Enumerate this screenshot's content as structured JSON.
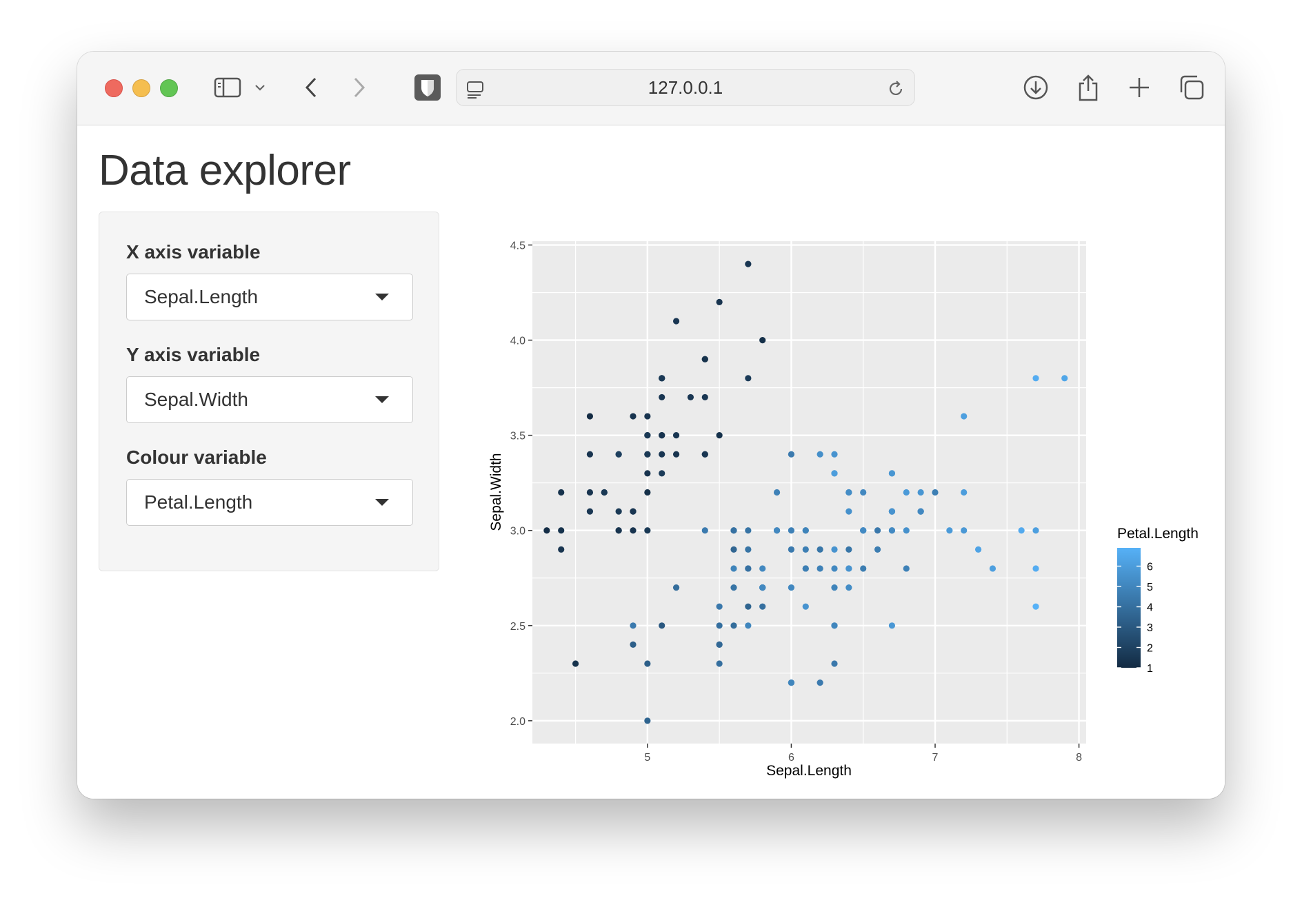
{
  "browser": {
    "url": "127.0.0.1",
    "icons": [
      "sidebar-icon",
      "chevron-down-icon",
      "back-icon",
      "forward-icon",
      "shield-icon",
      "page-icon",
      "reload-icon",
      "download-icon",
      "share-icon",
      "plus-icon",
      "tabs-icon"
    ]
  },
  "page": {
    "title": "Data explorer",
    "controls": [
      {
        "label": "X axis variable",
        "value": "Sepal.Length"
      },
      {
        "label": "Y axis variable",
        "value": "Sepal.Width"
      },
      {
        "label": "Colour variable",
        "value": "Petal.Length"
      }
    ]
  },
  "chart_data": {
    "type": "scatter",
    "xlabel": "Sepal.Length",
    "ylabel": "Sepal.Width",
    "xlim": [
      4.2,
      8.05
    ],
    "ylim": [
      1.88,
      4.52
    ],
    "x_ticks": [
      "5",
      "6",
      "7",
      "8"
    ],
    "y_ticks": [
      "2.0",
      "2.5",
      "3.0",
      "3.5",
      "4.0",
      "4.5"
    ],
    "legend": {
      "title": "Petal.Length",
      "position": "right",
      "ticks": [
        "1",
        "2",
        "3",
        "4",
        "5",
        "6"
      ],
      "range": [
        1,
        6.9
      ],
      "colors": [
        "#132B43",
        "#56B1F7"
      ]
    },
    "points": [
      [
        5.1,
        3.5,
        1.4
      ],
      [
        4.9,
        3.0,
        1.4
      ],
      [
        4.7,
        3.2,
        1.3
      ],
      [
        4.6,
        3.1,
        1.5
      ],
      [
        5.0,
        3.6,
        1.4
      ],
      [
        5.4,
        3.9,
        1.7
      ],
      [
        4.6,
        3.4,
        1.4
      ],
      [
        5.0,
        3.4,
        1.5
      ],
      [
        4.4,
        2.9,
        1.4
      ],
      [
        4.9,
        3.1,
        1.5
      ],
      [
        5.4,
        3.7,
        1.5
      ],
      [
        4.8,
        3.4,
        1.6
      ],
      [
        4.8,
        3.0,
        1.4
      ],
      [
        4.3,
        3.0,
        1.1
      ],
      [
        5.8,
        4.0,
        1.2
      ],
      [
        5.7,
        4.4,
        1.5
      ],
      [
        5.4,
        3.9,
        1.3
      ],
      [
        5.1,
        3.5,
        1.4
      ],
      [
        5.7,
        3.8,
        1.7
      ],
      [
        5.1,
        3.8,
        1.5
      ],
      [
        5.4,
        3.4,
        1.7
      ],
      [
        5.1,
        3.7,
        1.5
      ],
      [
        4.6,
        3.6,
        1.0
      ],
      [
        5.1,
        3.3,
        1.7
      ],
      [
        4.8,
        3.4,
        1.9
      ],
      [
        5.0,
        3.0,
        1.6
      ],
      [
        5.0,
        3.4,
        1.6
      ],
      [
        5.2,
        3.5,
        1.5
      ],
      [
        5.2,
        3.4,
        1.4
      ],
      [
        4.7,
        3.2,
        1.6
      ],
      [
        4.8,
        3.1,
        1.6
      ],
      [
        5.4,
        3.4,
        1.5
      ],
      [
        5.2,
        4.1,
        1.5
      ],
      [
        5.5,
        4.2,
        1.4
      ],
      [
        4.9,
        3.1,
        1.5
      ],
      [
        5.0,
        3.2,
        1.2
      ],
      [
        5.5,
        3.5,
        1.3
      ],
      [
        4.9,
        3.6,
        1.4
      ],
      [
        4.4,
        3.0,
        1.3
      ],
      [
        5.1,
        3.4,
        1.5
      ],
      [
        5.0,
        3.5,
        1.3
      ],
      [
        4.5,
        2.3,
        1.3
      ],
      [
        4.4,
        3.2,
        1.3
      ],
      [
        5.0,
        3.5,
        1.6
      ],
      [
        5.1,
        3.8,
        1.9
      ],
      [
        4.8,
        3.0,
        1.4
      ],
      [
        5.1,
        3.8,
        1.6
      ],
      [
        4.6,
        3.2,
        1.4
      ],
      [
        5.3,
        3.7,
        1.5
      ],
      [
        5.0,
        3.3,
        1.4
      ],
      [
        7.0,
        3.2,
        4.7
      ],
      [
        6.4,
        3.2,
        4.5
      ],
      [
        6.9,
        3.1,
        4.9
      ],
      [
        5.5,
        2.3,
        4.0
      ],
      [
        6.5,
        2.8,
        4.6
      ],
      [
        5.7,
        2.8,
        4.5
      ],
      [
        6.3,
        3.3,
        4.7
      ],
      [
        4.9,
        2.4,
        3.3
      ],
      [
        6.6,
        2.9,
        4.6
      ],
      [
        5.2,
        2.7,
        3.9
      ],
      [
        5.0,
        2.0,
        3.5
      ],
      [
        5.9,
        3.0,
        4.2
      ],
      [
        6.0,
        2.2,
        4.0
      ],
      [
        6.1,
        2.9,
        4.7
      ],
      [
        5.6,
        2.9,
        3.6
      ],
      [
        6.7,
        3.1,
        4.4
      ],
      [
        5.6,
        3.0,
        4.5
      ],
      [
        5.8,
        2.7,
        4.1
      ],
      [
        6.2,
        2.2,
        4.5
      ],
      [
        5.6,
        2.5,
        3.9
      ],
      [
        5.9,
        3.2,
        4.8
      ],
      [
        6.1,
        2.8,
        4.0
      ],
      [
        6.3,
        2.5,
        4.9
      ],
      [
        6.1,
        2.8,
        4.7
      ],
      [
        6.4,
        2.9,
        4.3
      ],
      [
        6.6,
        3.0,
        4.4
      ],
      [
        6.8,
        2.8,
        4.8
      ],
      [
        6.7,
        3.0,
        5.0
      ],
      [
        6.0,
        2.9,
        4.5
      ],
      [
        5.7,
        2.6,
        3.5
      ],
      [
        5.5,
        2.4,
        3.8
      ],
      [
        5.5,
        2.4,
        3.7
      ],
      [
        5.8,
        2.7,
        3.9
      ],
      [
        6.0,
        2.7,
        5.1
      ],
      [
        5.4,
        3.0,
        4.5
      ],
      [
        6.0,
        3.4,
        4.5
      ],
      [
        6.7,
        3.1,
        4.7
      ],
      [
        6.3,
        2.3,
        4.4
      ],
      [
        5.6,
        3.0,
        4.1
      ],
      [
        5.5,
        2.5,
        4.0
      ],
      [
        5.5,
        2.6,
        4.4
      ],
      [
        6.1,
        3.0,
        4.6
      ],
      [
        5.8,
        2.6,
        4.0
      ],
      [
        5.0,
        2.3,
        3.3
      ],
      [
        5.6,
        2.7,
        4.2
      ],
      [
        5.7,
        3.0,
        4.2
      ],
      [
        5.7,
        2.9,
        4.2
      ],
      [
        6.2,
        2.9,
        4.3
      ],
      [
        5.1,
        2.5,
        3.0
      ],
      [
        5.7,
        2.8,
        4.1
      ],
      [
        6.3,
        3.3,
        6.0
      ],
      [
        5.8,
        2.7,
        5.1
      ],
      [
        7.1,
        3.0,
        5.9
      ],
      [
        6.3,
        2.9,
        5.6
      ],
      [
        6.5,
        3.0,
        5.8
      ],
      [
        7.6,
        3.0,
        6.6
      ],
      [
        4.9,
        2.5,
        4.5
      ],
      [
        7.3,
        2.9,
        6.3
      ],
      [
        6.7,
        2.5,
        5.8
      ],
      [
        7.2,
        3.6,
        6.1
      ],
      [
        6.5,
        3.2,
        5.1
      ],
      [
        6.4,
        2.7,
        5.3
      ],
      [
        6.8,
        3.0,
        5.5
      ],
      [
        5.7,
        2.5,
        5.0
      ],
      [
        5.8,
        2.8,
        5.1
      ],
      [
        6.4,
        3.2,
        5.3
      ],
      [
        6.5,
        3.0,
        5.5
      ],
      [
        7.7,
        3.8,
        6.7
      ],
      [
        7.7,
        2.6,
        6.9
      ],
      [
        6.0,
        2.2,
        5.0
      ],
      [
        6.9,
        3.2,
        5.7
      ],
      [
        5.6,
        2.8,
        4.9
      ],
      [
        7.7,
        2.8,
        6.7
      ],
      [
        6.3,
        2.7,
        4.9
      ],
      [
        6.7,
        3.3,
        5.7
      ],
      [
        7.2,
        3.2,
        6.0
      ],
      [
        6.2,
        2.8,
        4.8
      ],
      [
        6.1,
        3.0,
        4.9
      ],
      [
        6.4,
        2.8,
        5.6
      ],
      [
        7.2,
        3.0,
        5.8
      ],
      [
        7.4,
        2.8,
        6.1
      ],
      [
        7.9,
        3.8,
        6.4
      ],
      [
        6.4,
        2.8,
        5.6
      ],
      [
        6.3,
        2.8,
        5.1
      ],
      [
        6.1,
        2.6,
        5.6
      ],
      [
        7.7,
        3.0,
        6.1
      ],
      [
        6.3,
        3.4,
        5.6
      ],
      [
        6.4,
        3.1,
        5.5
      ],
      [
        6.0,
        3.0,
        4.8
      ],
      [
        6.9,
        3.1,
        5.4
      ],
      [
        6.7,
        3.1,
        5.6
      ],
      [
        6.9,
        3.1,
        5.1
      ],
      [
        5.8,
        2.7,
        5.1
      ],
      [
        6.8,
        3.2,
        5.9
      ],
      [
        6.7,
        3.3,
        5.7
      ],
      [
        6.7,
        3.0,
        5.2
      ],
      [
        6.3,
        2.5,
        5.0
      ],
      [
        6.5,
        3.0,
        5.2
      ],
      [
        6.2,
        3.4,
        5.4
      ],
      [
        5.9,
        3.0,
        5.1
      ]
    ]
  }
}
